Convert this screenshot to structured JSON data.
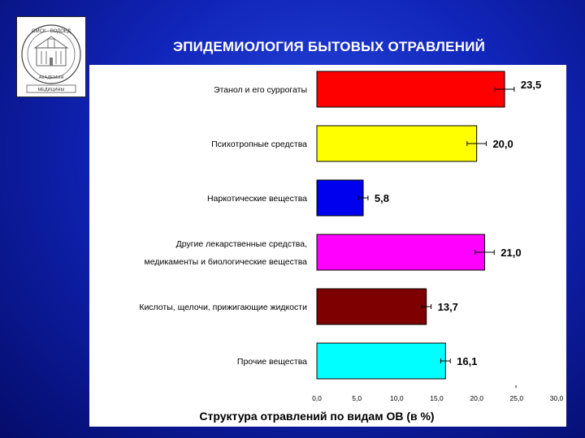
{
  "slide": {
    "title": "ЭПИДЕМИОЛОГИЯ БЫТОВЫХ ОТРАВЛЕНИЙ",
    "background_color": "#1a2fc8",
    "logo": {
      "top_text": "ОМСК · ВОДОЕД",
      "bottom_text": "АКАДЕМИЯ",
      "base_text": "МЕДИЦИНЫ"
    }
  },
  "chart_data": {
    "type": "bar",
    "orientation": "horizontal",
    "categories": [
      [
        "Этанол и его суррогаты"
      ],
      [
        "Психотропные средства"
      ],
      [
        "Наркотические вещества"
      ],
      [
        "Другие лекарственные средства,",
        "медикаменты и биологические вещества"
      ],
      [
        "Кислоты, щелочи, прижигающие жидкости"
      ],
      [
        "Прочие вещества"
      ]
    ],
    "values": [
      23.5,
      20.0,
      5.8,
      21.0,
      13.7,
      16.1
    ],
    "value_labels": [
      "23,5",
      "20,0",
      "5,8",
      "21,0",
      "13,7",
      "16,1"
    ],
    "errors": [
      1.2,
      1.2,
      0.6,
      1.2,
      0.6,
      0.6
    ],
    "colors": [
      "#ff0000",
      "#ffff00",
      "#0000ee",
      "#ff00ff",
      "#7f0000",
      "#00ffff"
    ],
    "xlim": [
      0,
      30
    ],
    "xticks": [
      0,
      5,
      10,
      15,
      20,
      25,
      30
    ],
    "xtick_labels": [
      "0,0",
      "5,0",
      "10,0",
      "15,0",
      "20,0",
      "25,0",
      "30,0"
    ],
    "xlabel": "Структура отравлений по видам ОВ (в %)",
    "grid": false
  }
}
